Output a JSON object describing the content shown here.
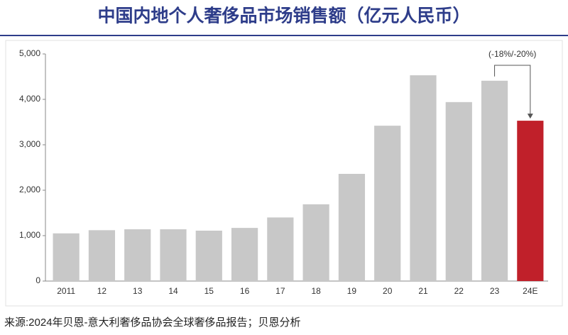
{
  "chart_data": {
    "type": "bar",
    "title": "中国内地个人奢侈品市场销售额（亿元人民币）",
    "categories": [
      "2011",
      "12",
      "13",
      "14",
      "15",
      "16",
      "17",
      "18",
      "19",
      "20",
      "21",
      "22",
      "23",
      "24E"
    ],
    "values": [
      1050,
      1120,
      1140,
      1140,
      1110,
      1170,
      1400,
      1690,
      2360,
      3420,
      4530,
      3940,
      4410,
      3530
    ],
    "colors": [
      "#c8c8c8",
      "#c8c8c8",
      "#c8c8c8",
      "#c8c8c8",
      "#c8c8c8",
      "#c8c8c8",
      "#c8c8c8",
      "#c8c8c8",
      "#c8c8c8",
      "#c8c8c8",
      "#c8c8c8",
      "#c8c8c8",
      "#c8c8c8",
      "#c0202a"
    ],
    "ylim": [
      0,
      5000
    ],
    "yticks": [
      0,
      {
        "value": 1000,
        "label": "1,000"
      },
      {
        "value": 2000,
        "label": "2,000"
      },
      {
        "value": 3000,
        "label": "3,000"
      },
      {
        "value": 4000,
        "label": "4,000"
      },
      {
        "value": 5000,
        "label": "5,000"
      }
    ],
    "annotation": "(-18%/-20%)",
    "source": "来源:2024年贝恩-意大利奢侈品协会全球奢侈品报告；贝恩分析"
  }
}
